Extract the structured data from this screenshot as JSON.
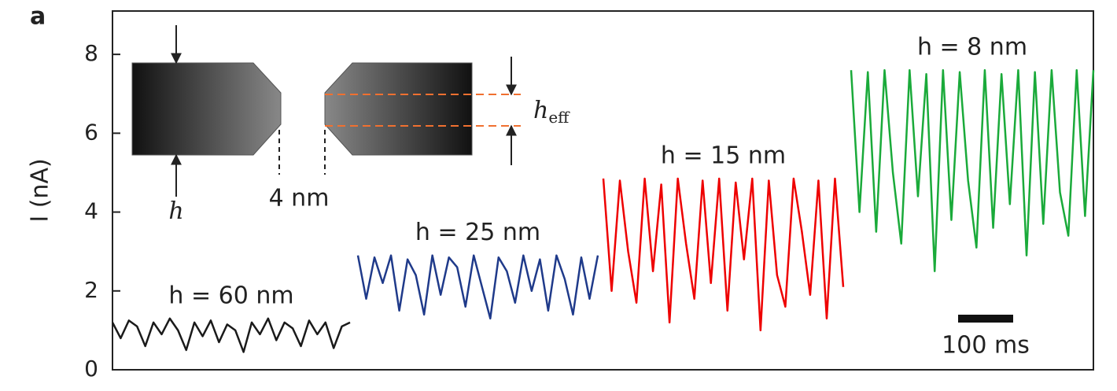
{
  "panel_label": "a",
  "inset": {
    "h": "h",
    "gap": "4 nm",
    "h_eff": {
      "base": "h",
      "sub": "eff"
    }
  },
  "chart_data": {
    "type": "line",
    "y_label": "I (nA)",
    "scale_bar": "100 ms",
    "ylim": [
      0,
      9.1
    ],
    "yticks": [
      0,
      2,
      4,
      6,
      8
    ],
    "series": [
      {
        "name": "h = 60 nm",
        "color": "#1a1a1a",
        "values": [
          1.2,
          0.8,
          1.25,
          1.1,
          0.6,
          1.2,
          0.9,
          1.3,
          1.0,
          0.5,
          1.2,
          0.85,
          1.25,
          0.7,
          1.15,
          1.0,
          0.45,
          1.2,
          0.9,
          1.3,
          0.75,
          1.2,
          1.05,
          0.6,
          1.25,
          0.9,
          1.2,
          0.55,
          1.1,
          1.2
        ]
      },
      {
        "name": "h = 25 nm",
        "color": "#1f3a8a",
        "values": [
          2.9,
          1.8,
          2.85,
          2.2,
          2.9,
          1.5,
          2.8,
          2.4,
          1.4,
          2.9,
          1.9,
          2.85,
          2.6,
          1.6,
          2.9,
          2.1,
          1.3,
          2.85,
          2.5,
          1.7,
          2.9,
          2.0,
          2.8,
          1.5,
          2.9,
          2.3,
          1.4,
          2.85,
          1.8,
          2.9
        ]
      },
      {
        "name": "h = 15 nm",
        "color": "#ee0000",
        "values": [
          4.85,
          2.0,
          4.8,
          3.0,
          1.7,
          4.85,
          2.5,
          4.7,
          1.2,
          4.85,
          3.2,
          1.8,
          4.8,
          2.2,
          4.85,
          1.5,
          4.75,
          2.8,
          4.85,
          1.0,
          4.8,
          2.4,
          1.6,
          4.85,
          3.5,
          1.9,
          4.8,
          1.3,
          4.85,
          2.1
        ]
      },
      {
        "name": "h = 8 nm",
        "color": "#1aaa3a",
        "values": [
          7.6,
          4.0,
          7.55,
          3.5,
          7.6,
          5.0,
          3.2,
          7.6,
          4.4,
          7.5,
          2.5,
          7.6,
          3.8,
          7.55,
          4.8,
          3.1,
          7.6,
          3.6,
          7.5,
          4.2,
          7.6,
          2.9,
          7.55,
          3.7,
          7.6,
          4.5,
          3.4,
          7.6,
          3.9,
          7.6
        ]
      }
    ]
  }
}
